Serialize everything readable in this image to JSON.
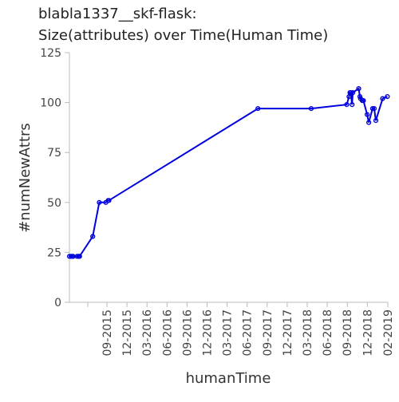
{
  "chart_data": {
    "type": "line",
    "title_lines": [
      "blabla1337__skf-flask:",
      "Size(attributes) over Time(Human Time)"
    ],
    "xlabel": "humanTime",
    "ylabel": "#numNewAttrs",
    "x_ticks": [
      "09-2015",
      "12-2015",
      "03-2016",
      "06-2016",
      "09-2016",
      "12-2016",
      "03-2017",
      "06-2017",
      "09-2017",
      "12-2017",
      "03-2018",
      "06-2018",
      "09-2018",
      "12-2018",
      "02-2019"
    ],
    "y_ticks": [
      0,
      25,
      50,
      75,
      100,
      125
    ],
    "ylim": [
      0,
      125
    ],
    "xlim": [
      "2015-05-18",
      "2019-02-01"
    ],
    "grid": false,
    "series_color": "#0000dd",
    "series": [
      {
        "x": [
          "2015-05-18",
          "2015-05-25",
          "2015-06-01",
          "2015-06-03",
          "2015-06-20",
          "2015-06-27",
          "2015-06-30",
          "2015-08-25",
          "2015-09-22",
          "2015-10-20",
          "2015-10-30",
          "2015-11-02",
          "2017-07-28",
          "2018-03-12",
          "2018-08-10",
          "2018-08-20",
          "2018-08-24",
          "2018-08-27",
          "2018-09-02",
          "2018-09-05",
          "2018-09-30",
          "2018-10-05",
          "2018-10-08",
          "2018-10-15",
          "2018-10-20",
          "2018-11-05",
          "2018-11-12",
          "2018-11-28",
          "2018-12-05",
          "2018-12-12",
          "2019-01-10",
          "2019-01-30"
        ],
        "y": [
          23,
          23,
          23,
          23,
          23,
          23,
          23,
          33,
          50,
          50,
          51,
          51,
          97,
          97,
          99,
          103,
          105,
          105,
          99,
          105,
          107,
          103,
          102,
          101,
          101,
          94,
          90,
          97,
          97,
          91,
          102,
          103
        ]
      }
    ]
  }
}
